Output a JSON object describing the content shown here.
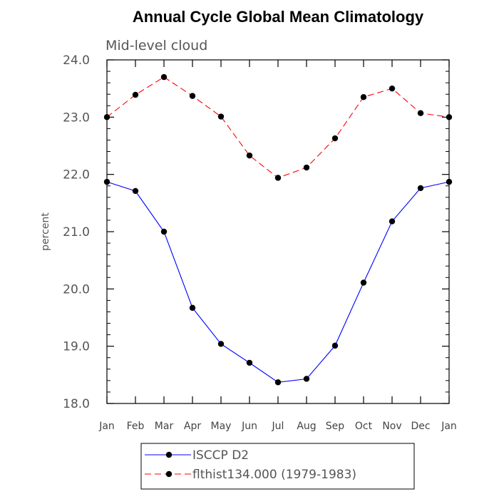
{
  "chart_data": {
    "type": "line",
    "title": "Annual Cycle Global Mean Climatology",
    "subtitle": "Mid-level cloud",
    "xlabel": "",
    "ylabel": "percent",
    "categories": [
      "Jan",
      "Feb",
      "Mar",
      "Apr",
      "May",
      "Jun",
      "Jul",
      "Aug",
      "Sep",
      "Oct",
      "Nov",
      "Dec",
      "Jan"
    ],
    "ylim": [
      18.0,
      24.0
    ],
    "yticks": [
      "18.0",
      "19.0",
      "20.0",
      "21.0",
      "22.0",
      "23.0",
      "24.0"
    ],
    "legend_position": "bottom",
    "series": [
      {
        "name": "ISCCP D2",
        "color": "#0000ff",
        "line_style": "solid",
        "marker": "filled-circle",
        "values": [
          21.87,
          21.71,
          21.0,
          19.67,
          19.04,
          18.71,
          18.37,
          18.43,
          19.01,
          20.11,
          21.18,
          21.76,
          21.87
        ]
      },
      {
        "name": "flthist134.000 (1979-1983)",
        "color": "#ff0000",
        "line_style": "dashed",
        "marker": "filled-circle",
        "values": [
          23.0,
          23.39,
          23.7,
          23.37,
          23.01,
          22.33,
          21.94,
          22.12,
          22.63,
          23.35,
          23.5,
          23.07,
          23.0
        ]
      }
    ]
  }
}
